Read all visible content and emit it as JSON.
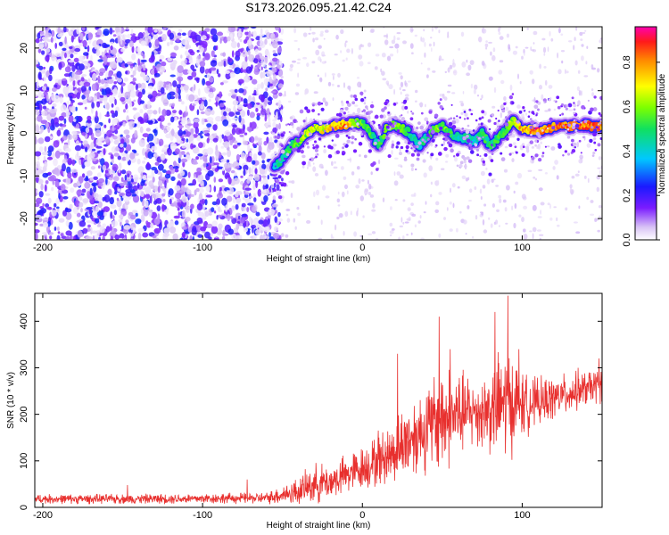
{
  "title": "S173.2026.095.21.42.C24",
  "colors": {
    "snr_line": "#e8302e",
    "ridge_high": "#ff1a1a",
    "speckle": "#8a2be2"
  },
  "chart_data": [
    {
      "type": "heatmap",
      "xlabel": "Height of straight line (km)",
      "ylabel": "Frequency (Hz)",
      "xlim": [
        -205,
        150
      ],
      "ylim": [
        -25,
        25
      ],
      "x_ticks": [
        -200,
        -100,
        0,
        100
      ],
      "x_tick_labels": [
        "-200",
        "-100",
        "0",
        "100"
      ],
      "y_ticks": [
        20,
        10,
        0,
        -10,
        -20
      ],
      "y_tick_labels": [
        "20",
        "10",
        "0",
        "-10",
        "-20"
      ],
      "colorbar": {
        "label": "Normalized spectral amplitude",
        "range": [
          0,
          0.96
        ],
        "ticks": [
          0.0,
          0.2,
          0.4,
          0.6,
          0.8
        ],
        "tick_labels": [
          "0.0",
          "0.2",
          "0.4",
          "0.6",
          "0.8"
        ],
        "colormap": "rainbow (white → violet → blue → cyan → green → yellow → orange → red → magenta)"
      },
      "noise_region_x": [
        -205,
        -50
      ],
      "ridge": {
        "x": [
          -55,
          -50,
          -45,
          -40,
          -35,
          -30,
          -25,
          -20,
          -15,
          -10,
          -5,
          0,
          5,
          10,
          15,
          20,
          25,
          30,
          35,
          40,
          45,
          50,
          55,
          60,
          65,
          70,
          75,
          80,
          85,
          90,
          95,
          100,
          105,
          110,
          115,
          120,
          125,
          130,
          135,
          140,
          145,
          150
        ],
        "y": [
          -8,
          -6,
          -3,
          -2,
          0,
          1,
          1,
          1.5,
          2,
          2,
          2.5,
          2.5,
          0,
          -3,
          1,
          2,
          1,
          0,
          -3,
          -1,
          1,
          2,
          0,
          -1,
          -1,
          -2,
          0,
          -3,
          -1,
          1,
          3,
          1,
          1,
          0.5,
          1,
          1.5,
          1.5,
          1.5,
          2,
          2,
          1.5,
          1.5
        ],
        "amplitude": [
          0.45,
          0.5,
          0.55,
          0.6,
          0.65,
          0.7,
          0.72,
          0.75,
          0.8,
          0.85,
          0.7,
          0.6,
          0.55,
          0.5,
          0.6,
          0.65,
          0.6,
          0.5,
          0.45,
          0.5,
          0.6,
          0.65,
          0.55,
          0.45,
          0.5,
          0.45,
          0.55,
          0.5,
          0.55,
          0.6,
          0.7,
          0.8,
          0.85,
          0.9,
          0.88,
          0.9,
          0.9,
          0.88,
          0.9,
          0.9,
          0.88,
          0.9
        ]
      }
    },
    {
      "type": "line",
      "xlabel": "Height of straight line (km)",
      "ylabel": "SNR (10 * v/v)",
      "xlim": [
        -205,
        150
      ],
      "ylim": [
        0,
        460
      ],
      "x_ticks": [
        -200,
        -100,
        0,
        100
      ],
      "x_tick_labels": [
        "-200",
        "-100",
        "0",
        "100"
      ],
      "y_ticks": [
        0,
        100,
        200,
        300,
        400
      ],
      "y_tick_labels": [
        "0",
        "100",
        "200",
        "300",
        "400"
      ],
      "series": [
        {
          "envelope_x": [
            -205,
            -150,
            -100,
            -60,
            -40,
            -30,
            -20,
            -10,
            0,
            10,
            20,
            30,
            40,
            50,
            60,
            70,
            80,
            90,
            100,
            110,
            120,
            130,
            140,
            150
          ],
          "mean": [
            18,
            18,
            19,
            20,
            35,
            50,
            55,
            70,
            85,
            100,
            120,
            150,
            170,
            190,
            200,
            205,
            210,
            225,
            220,
            225,
            235,
            245,
            255,
            265
          ],
          "spread": [
            12,
            12,
            13,
            14,
            35,
            50,
            45,
            50,
            55,
            65,
            80,
            100,
            110,
            140,
            110,
            90,
            110,
            150,
            80,
            60,
            55,
            50,
            45,
            45
          ],
          "peaks": [
            {
              "x": -147,
              "y": 48
            },
            {
              "x": -72,
              "y": 60
            },
            {
              "x": 10,
              "y": 165
            },
            {
              "x": 22,
              "y": 330
            },
            {
              "x": 48,
              "y": 410
            },
            {
              "x": 55,
              "y": 340
            },
            {
              "x": 83,
              "y": 420
            },
            {
              "x": 91,
              "y": 455
            },
            {
              "x": 98,
              "y": 340
            },
            {
              "x": 135,
              "y": 300
            },
            {
              "x": 148,
              "y": 320
            }
          ]
        }
      ]
    }
  ]
}
